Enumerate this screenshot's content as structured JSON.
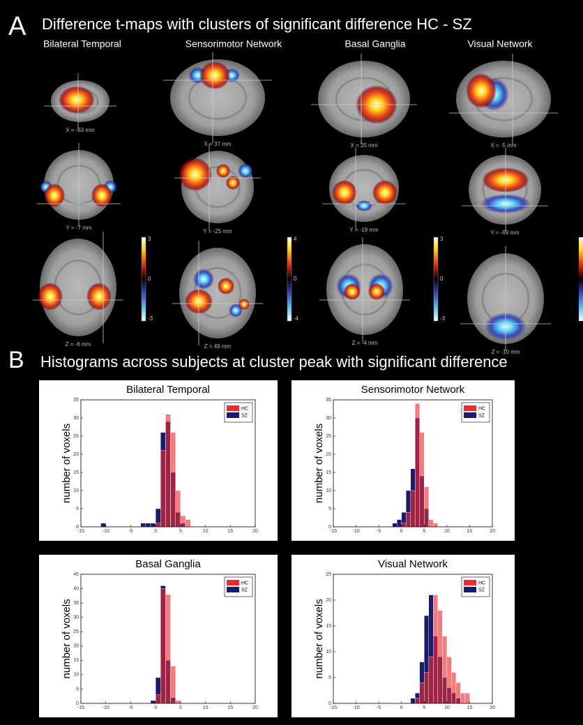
{
  "panel_a": {
    "label": "A",
    "title": "Difference t-maps with clusters of significant difference HC - SZ",
    "columns": [
      "Bilateral Temporal",
      "Sensorimotor Network",
      "Basal Ganglia",
      "Visual Network"
    ],
    "slice_labels": [
      [
        "X = -63 mm",
        "X = 37 mm",
        "X = 25 mm",
        "X = -5 mm"
      ],
      [
        "Y = -7 mm",
        "Y = -25 mm",
        "Y = -18 mm",
        "Y = -69 mm"
      ],
      [
        "Z = -6 mm",
        "Z = 49 mm",
        "Z = -4 mm",
        "Z = -10 mm"
      ]
    ],
    "colorbars": [
      {
        "max": "3",
        "mid": "0",
        "min": "-3"
      },
      {
        "max": "4",
        "mid": "0",
        "min": "-4"
      },
      {
        "max": "3",
        "mid": "0",
        "min": "-3"
      }
    ]
  },
  "panel_b": {
    "label": "B",
    "title": "Histograms across subjects at cluster peak with significant difference"
  },
  "chart_data": [
    {
      "type": "histogram",
      "title": "Bilateral Temporal",
      "y_label": "number of voxels",
      "legend": "upper right",
      "xlim": [
        -15,
        20
      ],
      "xticks": [
        -15,
        -10,
        -5,
        0,
        5,
        10,
        15,
        20
      ],
      "ylim": [
        0,
        35
      ],
      "yticks": [
        0,
        5,
        10,
        15,
        20,
        25,
        30,
        35
      ],
      "bins": [
        -12,
        -11,
        -10,
        -9,
        -8,
        -7,
        -6,
        -5,
        -4,
        -3,
        -2,
        -1,
        0,
        1,
        2,
        3,
        4,
        5,
        6,
        7
      ],
      "series": [
        {
          "name": "HC",
          "color": "#ee2a2f",
          "values": [
            0,
            0,
            0,
            0,
            0,
            0,
            0,
            0,
            0,
            0,
            0,
            0,
            1,
            21,
            31,
            26,
            10,
            3,
            2
          ]
        },
        {
          "name": "SZ",
          "color": "#1b1b6b",
          "values": [
            0,
            1,
            0,
            0,
            0,
            0,
            0,
            0,
            0,
            1,
            1,
            1,
            5,
            26,
            29,
            15,
            4,
            1,
            0
          ]
        }
      ]
    },
    {
      "type": "histogram",
      "title": "Sensorimotor Network",
      "y_label": "number of voxels",
      "legend": "upper right",
      "xlim": [
        -15,
        20
      ],
      "xticks": [
        -15,
        -10,
        -5,
        0,
        5,
        10,
        15,
        20
      ],
      "ylim": [
        0,
        35
      ],
      "yticks": [
        0,
        5,
        10,
        15,
        20,
        25,
        30,
        35
      ],
      "bins": [
        -2,
        -1,
        0,
        1,
        2,
        3,
        4,
        5,
        6,
        7,
        8
      ],
      "series": [
        {
          "name": "HC",
          "color": "#ee2a2f",
          "values": [
            0,
            0,
            1,
            4,
            10,
            34,
            26,
            11,
            2,
            1
          ]
        },
        {
          "name": "SZ",
          "color": "#1b1b6b",
          "values": [
            1,
            2,
            4,
            10,
            16,
            30,
            14,
            5,
            0,
            0
          ]
        }
      ]
    },
    {
      "type": "histogram",
      "title": "Basal Ganglia",
      "y_label": "number of voxels",
      "legend": "upper right",
      "xlim": [
        -15,
        20
      ],
      "xticks": [
        -15,
        -10,
        -5,
        0,
        5,
        10,
        15,
        20
      ],
      "ylim": [
        0,
        45
      ],
      "yticks": [
        0,
        5,
        10,
        15,
        20,
        25,
        30,
        35,
        40,
        45
      ],
      "bins": [
        -1,
        0,
        1,
        2,
        3,
        4,
        5
      ],
      "series": [
        {
          "name": "HC",
          "color": "#ee2a2f",
          "values": [
            0,
            3,
            40,
            38,
            13,
            1
          ]
        },
        {
          "name": "SZ",
          "color": "#1b1b6b",
          "values": [
            1,
            9,
            41,
            15,
            2,
            0
          ]
        }
      ]
    },
    {
      "type": "histogram",
      "title": "Visual Network",
      "y_label": "number of voxels",
      "legend": "upper right",
      "xlim": [
        -15,
        20
      ],
      "xticks": [
        -15,
        -10,
        -5,
        0,
        5,
        10,
        15,
        20
      ],
      "ylim": [
        0,
        25
      ],
      "yticks": [
        0,
        5,
        10,
        15,
        20,
        25
      ],
      "bins": [
        2,
        3,
        4,
        5,
        6,
        7,
        8,
        9,
        10,
        11,
        12,
        13,
        14,
        15,
        16
      ],
      "series": [
        {
          "name": "HC",
          "color": "#ee2a2f",
          "values": [
            0,
            1,
            4,
            6,
            9,
            21,
            18,
            13,
            9,
            6,
            4,
            2,
            2,
            0
          ]
        },
        {
          "name": "SZ",
          "color": "#1b1b6b",
          "values": [
            1,
            2,
            8,
            17,
            21,
            13,
            9,
            5,
            3,
            2,
            1,
            0,
            0,
            0
          ]
        }
      ]
    }
  ]
}
